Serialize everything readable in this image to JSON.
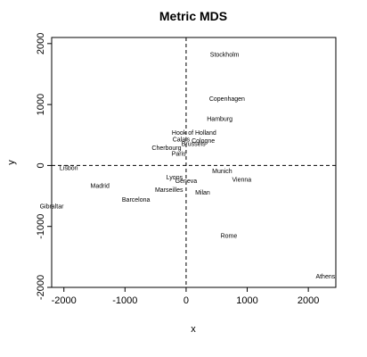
{
  "chart_data": {
    "type": "scatter",
    "title": "Metric MDS",
    "xlabel": "x",
    "ylabel": "y",
    "xlim": [
      -2200,
      2450
    ],
    "ylim": [
      -2000,
      2100
    ],
    "xticks": [
      -2000,
      -1000,
      0,
      1000,
      2000
    ],
    "yticks": [
      -2000,
      -1000,
      0,
      1000,
      2000
    ],
    "reference_lines": {
      "x": 0,
      "y": 0,
      "style": "dashed"
    },
    "points": [
      {
        "label": "Stockholm",
        "x": 630,
        "y": 1820
      },
      {
        "label": "Copenhagen",
        "x": 670,
        "y": 1100
      },
      {
        "label": "Hamburg",
        "x": 550,
        "y": 770
      },
      {
        "label": "Hook of Holland",
        "x": 130,
        "y": 540
      },
      {
        "label": "Calais",
        "x": -80,
        "y": 430
      },
      {
        "label": "Cologne",
        "x": 280,
        "y": 410
      },
      {
        "label": "Brussels",
        "x": 120,
        "y": 360
      },
      {
        "label": "Cherbourg",
        "x": -320,
        "y": 290
      },
      {
        "label": "Paris",
        "x": -120,
        "y": 200
      },
      {
        "label": "Lisbon",
        "x": -1920,
        "y": -40
      },
      {
        "label": "Munich",
        "x": 590,
        "y": -90
      },
      {
        "label": "Vienna",
        "x": 910,
        "y": -230
      },
      {
        "label": "Lyons",
        "x": -190,
        "y": -190
      },
      {
        "label": "Geneva",
        "x": 0,
        "y": -250
      },
      {
        "label": "Madrid",
        "x": -1410,
        "y": -330
      },
      {
        "label": "Marseilles",
        "x": -280,
        "y": -400
      },
      {
        "label": "Milan",
        "x": 270,
        "y": -440
      },
      {
        "label": "Barcelona",
        "x": -820,
        "y": -560
      },
      {
        "label": "Gibraltar",
        "x": -2200,
        "y": -670
      },
      {
        "label": "Rome",
        "x": 700,
        "y": -1150
      },
      {
        "label": "Athens",
        "x": 2280,
        "y": -1820
      }
    ]
  }
}
